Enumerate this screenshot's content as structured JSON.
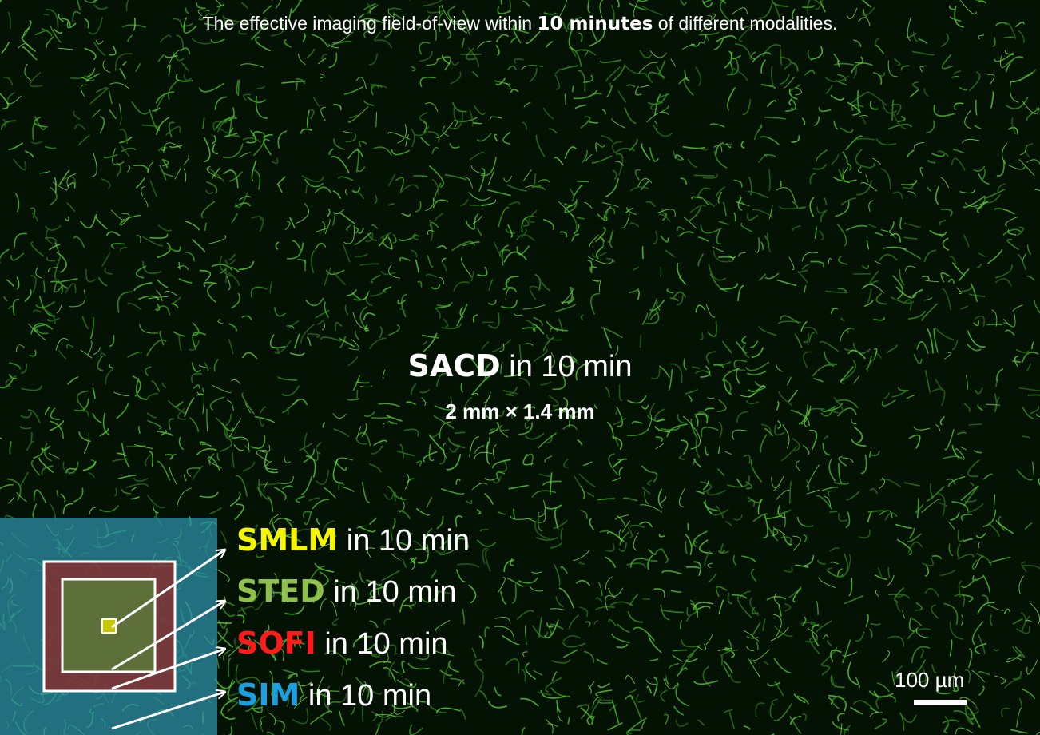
{
  "title": {
    "prefix": "The effective imaging field-of-view within ",
    "bold": "10 minutes",
    "suffix": " of different modalities."
  },
  "sacd": {
    "name": "SACD",
    "suffix": " in 10 min",
    "size": "2 mm × 1.4 mm"
  },
  "modalities": [
    {
      "name": "SMLM",
      "suffix": " in 10 min",
      "color": "#f5f500"
    },
    {
      "name": "STED",
      "suffix": " in 10 min",
      "color": "#8fc14a"
    },
    {
      "name": "SOFI",
      "suffix": " in 10 min",
      "color": "#ff1a1a"
    },
    {
      "name": "SIM",
      "suffix": " in 10 min",
      "color": "#1aa0e0"
    }
  ],
  "scale_bar": {
    "label": "100 µm"
  },
  "colors": {
    "background": "#041204",
    "cell_green": "#4cbf2a",
    "sim_box": "#2b8fa8",
    "sofi_box": "#8a2a2a",
    "sted_box": "#5a7a3a",
    "smlm_box": "#d8d800"
  }
}
